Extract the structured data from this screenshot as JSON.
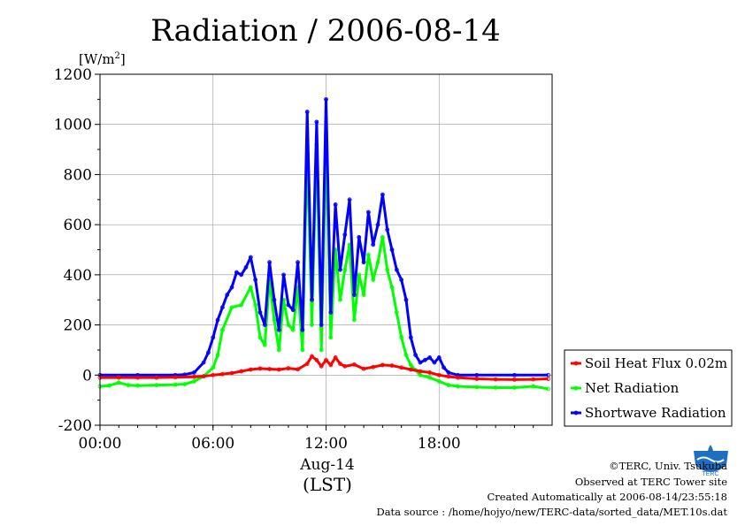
{
  "chart_data": {
    "type": "line",
    "title": "Radiation / 2006-08-14",
    "ylabel_unit": "[W/m",
    "ylabel_unit_sup": "2",
    "ylabel_unit_close": "]",
    "ylim": [
      -200,
      1200
    ],
    "yticks": [
      -200,
      0,
      200,
      400,
      600,
      800,
      1000,
      1200
    ],
    "xlim": [
      0,
      24
    ],
    "xtick_values": [
      0,
      6,
      12,
      18
    ],
    "xtick_labels": [
      "00:00",
      "06:00",
      "12:00",
      "18:00"
    ],
    "xlabel_date": "Aug-14",
    "xlabel_zone": "(LST)",
    "grid": true,
    "legend_position": "right",
    "series": [
      {
        "name": "Soil Heat Flux 0.02m",
        "color": "#ff0000",
        "x": [
          0,
          1,
          2,
          3,
          4,
          5,
          5.5,
          6,
          6.5,
          7,
          7.5,
          8,
          8.5,
          9,
          9.5,
          10,
          10.5,
          11,
          11.25,
          11.5,
          11.75,
          12,
          12.25,
          12.5,
          12.75,
          13,
          13.5,
          14,
          14.5,
          15,
          15.5,
          16,
          16.5,
          17,
          17.5,
          18,
          18.5,
          19,
          20,
          21,
          22,
          23,
          23.8
        ],
        "y": [
          -10,
          -10,
          -10,
          -10,
          -9,
          -7,
          -5,
          0,
          4,
          8,
          15,
          22,
          26,
          24,
          22,
          27,
          23,
          45,
          75,
          60,
          35,
          60,
          40,
          70,
          45,
          35,
          42,
          25,
          32,
          40,
          38,
          30,
          22,
          15,
          10,
          0,
          -6,
          -10,
          -15,
          -17,
          -18,
          -17,
          -15
        ]
      },
      {
        "name": "Net Radiation",
        "color": "#00ff00",
        "x": [
          0,
          0.5,
          1,
          1.5,
          2,
          3,
          4,
          4.5,
          5,
          5.5,
          6,
          6.25,
          6.5,
          7,
          7.5,
          8,
          8.25,
          8.5,
          8.75,
          9,
          9.25,
          9.5,
          9.75,
          10,
          10.25,
          10.5,
          10.75,
          11,
          11.25,
          11.5,
          11.75,
          12,
          12.25,
          12.5,
          12.75,
          13,
          13.25,
          13.5,
          13.75,
          14,
          14.25,
          14.5,
          14.75,
          15,
          15.25,
          15.5,
          15.75,
          16,
          16.25,
          16.5,
          16.75,
          17,
          17.5,
          18,
          18.5,
          19,
          20,
          21,
          22,
          23,
          23.8
        ],
        "y": [
          -45,
          -42,
          -30,
          -40,
          -42,
          -40,
          -38,
          -36,
          -25,
          -5,
          30,
          80,
          180,
          270,
          280,
          350,
          280,
          150,
          120,
          380,
          220,
          100,
          300,
          200,
          180,
          350,
          100,
          900,
          200,
          920,
          100,
          960,
          150,
          500,
          300,
          420,
          520,
          220,
          400,
          320,
          480,
          380,
          450,
          550,
          420,
          350,
          250,
          150,
          80,
          40,
          20,
          0,
          -10,
          -25,
          -40,
          -45,
          -48,
          -50,
          -50,
          -45,
          -55
        ]
      },
      {
        "name": "Shortwave Radiation",
        "color": "#0000ff",
        "x": [
          0,
          2,
          4,
          4.5,
          5,
          5.5,
          5.75,
          6,
          6.25,
          6.5,
          6.75,
          7,
          7.25,
          7.5,
          7.75,
          8,
          8.25,
          8.5,
          8.75,
          9,
          9.25,
          9.5,
          9.75,
          10,
          10.25,
          10.5,
          10.75,
          11,
          11.25,
          11.5,
          11.75,
          12,
          12.25,
          12.5,
          12.75,
          13,
          13.25,
          13.5,
          13.75,
          14,
          14.25,
          14.5,
          14.75,
          15,
          15.25,
          15.5,
          15.75,
          16,
          16.25,
          16.5,
          16.75,
          17,
          17.25,
          17.5,
          17.75,
          18,
          18.25,
          18.5,
          19,
          20,
          22,
          23.8
        ],
        "y": [
          0,
          0,
          0,
          2,
          10,
          50,
          90,
          150,
          220,
          270,
          320,
          350,
          410,
          400,
          430,
          470,
          380,
          250,
          200,
          450,
          300,
          180,
          400,
          280,
          260,
          450,
          180,
          1050,
          300,
          1010,
          200,
          1100,
          250,
          680,
          420,
          560,
          700,
          320,
          550,
          450,
          650,
          520,
          600,
          720,
          580,
          500,
          420,
          380,
          300,
          150,
          80,
          50,
          60,
          70,
          50,
          70,
          30,
          10,
          0,
          0,
          0,
          0
        ]
      }
    ],
    "footer": {
      "copyright": "©TERC, Univ. Tsukuba",
      "observed": "Observed at TERC Tower site",
      "created": "Created Automatically at 2006-08-14/23:55:18",
      "source": "Data source : /home/hojyo/new/TERC-data/sorted_data/MET.10s.dat"
    },
    "logo_text": "TERC"
  }
}
